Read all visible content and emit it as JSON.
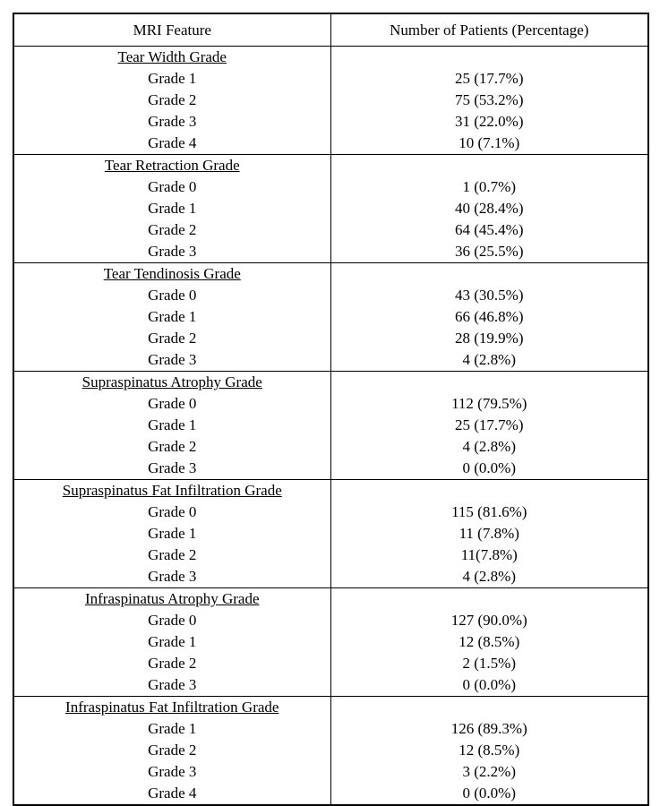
{
  "table": {
    "header": {
      "feature": "MRI Feature",
      "value": "Number of Patients (Percentage)"
    },
    "sections": [
      {
        "title": "Tear Width Grade",
        "rows": [
          {
            "label": "Grade 1",
            "value": "25 (17.7%)"
          },
          {
            "label": "Grade 2",
            "value": "75 (53.2%)"
          },
          {
            "label": "Grade 3",
            "value": "31 (22.0%)"
          },
          {
            "label": "Grade 4",
            "value": "10 (7.1%)"
          }
        ]
      },
      {
        "title": "Tear Retraction Grade",
        "rows": [
          {
            "label": "Grade 0",
            "value": "1 (0.7%)"
          },
          {
            "label": "Grade 1",
            "value": "40 (28.4%)"
          },
          {
            "label": "Grade 2",
            "value": "64 (45.4%)"
          },
          {
            "label": "Grade 3",
            "value": "36 (25.5%)"
          }
        ]
      },
      {
        "title": "Tear Tendinosis Grade",
        "rows": [
          {
            "label": "Grade 0",
            "value": "43 (30.5%)"
          },
          {
            "label": "Grade 1",
            "value": "66 (46.8%)"
          },
          {
            "label": "Grade 2",
            "value": "28 (19.9%)"
          },
          {
            "label": "Grade 3",
            "value": "4 (2.8%)"
          }
        ]
      },
      {
        "title": "Supraspinatus Atrophy Grade",
        "rows": [
          {
            "label": "Grade 0",
            "value": "112 (79.5%)"
          },
          {
            "label": "Grade 1",
            "value": "25 (17.7%)"
          },
          {
            "label": "Grade 2",
            "value": "4 (2.8%)"
          },
          {
            "label": "Grade 3",
            "value": "0 (0.0%)"
          }
        ]
      },
      {
        "title": "Supraspinatus Fat Infiltration Grade",
        "rows": [
          {
            "label": "Grade 0",
            "value": "115 (81.6%)"
          },
          {
            "label": "Grade 1",
            "value": "11 (7.8%)"
          },
          {
            "label": "Grade 2",
            "value": "11(7.8%)"
          },
          {
            "label": "Grade 3",
            "value": "4 (2.8%)"
          }
        ]
      },
      {
        "title": "Infraspinatus Atrophy Grade",
        "rows": [
          {
            "label": "Grade 0",
            "value": "127 (90.0%)"
          },
          {
            "label": "Grade 1",
            "value": "12 (8.5%)"
          },
          {
            "label": "Grade 2",
            "value": "2 (1.5%)"
          },
          {
            "label": "Grade 3",
            "value": "0 (0.0%)"
          }
        ]
      },
      {
        "title": "Infraspinatus Fat Infiltration Grade",
        "rows": [
          {
            "label": "Grade 1",
            "value": "126 (89.3%)"
          },
          {
            "label": "Grade 2",
            "value": "12 (8.5%)"
          },
          {
            "label": "Grade 3",
            "value": "3 (2.2%)"
          },
          {
            "label": "Grade 4",
            "value": "0 (0.0%)"
          }
        ]
      }
    ]
  }
}
